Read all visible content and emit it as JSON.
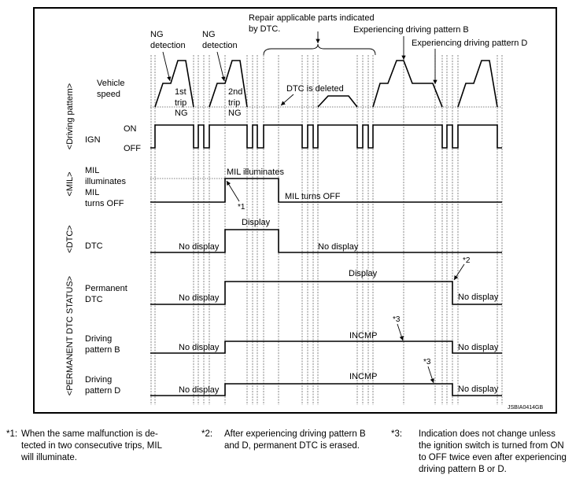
{
  "annotations": {
    "repair_line1": "Repair applicable parts indicated",
    "repair_line2": "by DTC.",
    "ng_detection_1": [
      "NG",
      "detection"
    ],
    "ng_detection_2": [
      "NG",
      "detection"
    ],
    "trip1": [
      "1st",
      "trip",
      "NG"
    ],
    "trip2": [
      "2nd",
      "trip",
      "NG"
    ],
    "dtc_deleted": "DTC is deleted",
    "exp_pattern_b": "Experiencing driving pattern B",
    "exp_pattern_d": "Experiencing driving pattern D",
    "mil_illuminates": "MIL illuminates",
    "mil_turns_off": "MIL turns OFF",
    "note1_mark": "*1",
    "note2_mark": "*2",
    "note3_mark": "*3",
    "display": "Display",
    "no_display": "No display",
    "incmp": "INCMP",
    "figure_code": "JSBIA0414GB"
  },
  "groups": {
    "driving_pattern": "<Driving pattern>",
    "mil": "<MIL>",
    "dtc": "<DTC>",
    "permanent": "<PERMANENT DTC STATUS>"
  },
  "rows": {
    "vehicle_speed": [
      "Vehicle",
      "speed"
    ],
    "ign": "IGN",
    "on": "ON",
    "off": "OFF",
    "mil": [
      "MIL",
      "illuminates",
      "MIL",
      "turns OFF"
    ],
    "dtc": "DTC",
    "permanent_dtc": [
      "Permanent",
      "DTC"
    ],
    "pattern_b": [
      "Driving",
      "pattern B"
    ],
    "pattern_d": [
      "Driving",
      "pattern D"
    ]
  },
  "footnotes": [
    {
      "mark": "*1:",
      "lines": [
        "When the same malfunction is de-",
        "tected in two consecutive trips, MIL",
        "will illuminate."
      ]
    },
    {
      "mark": "*2:",
      "lines": [
        "After experiencing driving pattern B",
        "and D, permanent DTC is erased."
      ]
    },
    {
      "mark": "*3:",
      "lines": [
        "Indication does not change unless",
        "the ignition switch is turned from ON",
        "to OFF twice even after experiencing",
        "driving pattern B or D."
      ]
    }
  ]
}
